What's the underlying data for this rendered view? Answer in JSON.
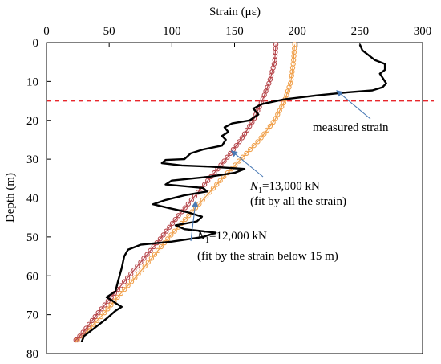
{
  "chart_data": {
    "type": "line",
    "xlabel": "Strain (με)",
    "ylabel": "Depth (m)",
    "xlim": [
      0,
      300
    ],
    "ylim": [
      0,
      80
    ],
    "y_inverted": true,
    "x_axis_position": "top",
    "x_ticks": [
      0,
      50,
      100,
      150,
      200,
      250,
      300
    ],
    "y_ticks": [
      0,
      10,
      20,
      30,
      40,
      50,
      60,
      70,
      80
    ],
    "grid": false,
    "reference_line": {
      "depth": 15,
      "color": "#e8262b",
      "style": "dashed"
    },
    "series": [
      {
        "name": "measured strain",
        "color": "#000000",
        "style": "solid",
        "points": [
          [
            250,
            0.5
          ],
          [
            252,
            2
          ],
          [
            258,
            3.5
          ],
          [
            262,
            4.5
          ],
          [
            270,
            5.5
          ],
          [
            270,
            7
          ],
          [
            266,
            8
          ],
          [
            268,
            9
          ],
          [
            271,
            10.5
          ],
          [
            268,
            11.5
          ],
          [
            260,
            12.3
          ],
          [
            240,
            12.8
          ],
          [
            215,
            13.6
          ],
          [
            190,
            14.6
          ],
          [
            172,
            15.8
          ],
          [
            165,
            17
          ],
          [
            169,
            18.5
          ],
          [
            162,
            20
          ],
          [
            148,
            20.8
          ],
          [
            142,
            21.8
          ],
          [
            145,
            23
          ],
          [
            140,
            24
          ],
          [
            143,
            25
          ],
          [
            140,
            26.5
          ],
          [
            125,
            27.5
          ],
          [
            115,
            28.5
          ],
          [
            110,
            30
          ],
          [
            95,
            30.2
          ],
          [
            92,
            31
          ],
          [
            108,
            31.6
          ],
          [
            130,
            31.9
          ],
          [
            158,
            32.5
          ],
          [
            150,
            33.5
          ],
          [
            130,
            34.5
          ],
          [
            100,
            35.5
          ],
          [
            95,
            36.5
          ],
          [
            125,
            37.4
          ],
          [
            128,
            38.3
          ],
          [
            110,
            39.3
          ],
          [
            95,
            40.5
          ],
          [
            85,
            41.6
          ],
          [
            98,
            42.6
          ],
          [
            112,
            43.6
          ],
          [
            124,
            44.8
          ],
          [
            120,
            46
          ],
          [
            103,
            47
          ],
          [
            110,
            48
          ],
          [
            135,
            48.9
          ],
          [
            125,
            50
          ],
          [
            100,
            51.2
          ],
          [
            75,
            52
          ],
          [
            65,
            53.3
          ],
          [
            62,
            55
          ],
          [
            60,
            58
          ],
          [
            57,
            61.5
          ],
          [
            55,
            64
          ],
          [
            48,
            65.5
          ],
          [
            53,
            66.5
          ],
          [
            55,
            67
          ],
          [
            60,
            68
          ],
          [
            55,
            69
          ],
          [
            48,
            71
          ],
          [
            38,
            73.5
          ],
          [
            30,
            75.5
          ],
          [
            28,
            77
          ]
        ]
      },
      {
        "name": "N1=13,000 kN (fit by all the strain)",
        "color": "#f0a04b",
        "marker": "open-circle",
        "points": [
          [
            198,
            0.5
          ],
          [
            197,
            5
          ],
          [
            195,
            10
          ],
          [
            190,
            15
          ],
          [
            182,
            20
          ],
          [
            170,
            25
          ],
          [
            155,
            30
          ],
          [
            140,
            35
          ],
          [
            126,
            40
          ],
          [
            112,
            45
          ],
          [
            98,
            50
          ],
          [
            85,
            55
          ],
          [
            72,
            60
          ],
          [
            58,
            65
          ],
          [
            45,
            70
          ],
          [
            30,
            75
          ],
          [
            23,
            77
          ]
        ]
      },
      {
        "name": "N1=12,000 kN (fit by the strain below 15 m)",
        "color": "#b6464b",
        "marker": "open-circle",
        "points": [
          [
            183,
            0.5
          ],
          [
            182,
            5
          ],
          [
            178,
            10
          ],
          [
            172,
            15
          ],
          [
            165,
            20
          ],
          [
            155,
            25
          ],
          [
            143,
            30
          ],
          [
            130,
            35
          ],
          [
            117,
            40
          ],
          [
            104,
            45
          ],
          [
            92,
            50
          ],
          [
            79,
            55
          ],
          [
            66,
            60
          ],
          [
            53,
            65
          ],
          [
            40,
            70
          ],
          [
            28,
            75
          ],
          [
            22,
            77
          ]
        ]
      }
    ],
    "annotations": [
      {
        "text": "measured strain",
        "arrow_target": [
          232,
          12.5
        ]
      },
      {
        "text": "N1=13,000 kN",
        "line2": "(fit by all the strain)",
        "arrow_target": [
          148,
          28
        ]
      },
      {
        "text": "N1=12,000 kN",
        "line2": "(fit by the strain below 15 m)",
        "arrow_target": [
          119,
          41
        ]
      }
    ]
  }
}
